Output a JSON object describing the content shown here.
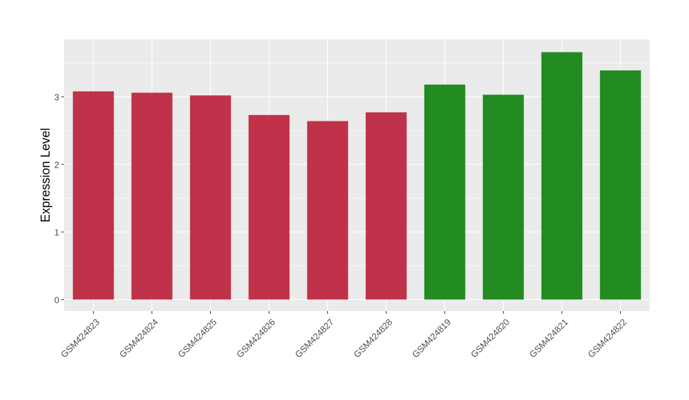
{
  "chart_data": {
    "type": "bar",
    "title": "",
    "xlabel": "",
    "ylabel": "Expression Level",
    "categories": [
      "GSM424823",
      "GSM424824",
      "GSM424825",
      "GSM424826",
      "GSM424827",
      "GSM424828",
      "GSM424819",
      "GSM424820",
      "GSM424821",
      "GSM424822"
    ],
    "values": [
      3.08,
      3.06,
      3.02,
      2.73,
      2.64,
      2.77,
      3.18,
      3.03,
      3.66,
      3.39
    ],
    "bar_colors": [
      "#c0314a",
      "#c0314a",
      "#c0314a",
      "#c0314a",
      "#c0314a",
      "#c0314a",
      "#228b22",
      "#228b22",
      "#228b22",
      "#228b22"
    ],
    "yticks": [
      0,
      1,
      2,
      3
    ],
    "ylim": [
      -0.17,
      3.85
    ],
    "grid": true,
    "panel_background": "#ebebeb",
    "grid_color": "#ffffff"
  }
}
